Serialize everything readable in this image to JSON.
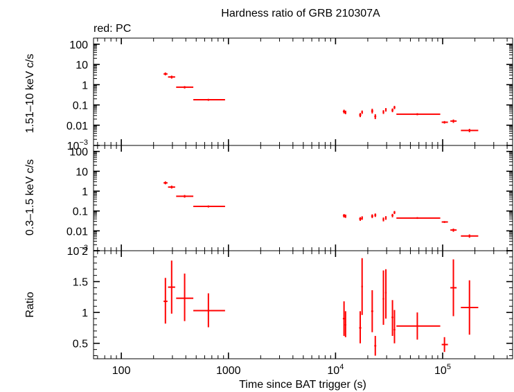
{
  "title": "Hardness ratio of GRB 210307A",
  "legend_note": "red: PC",
  "colors": {
    "data": "#ff0000",
    "axes": "#000000"
  },
  "chart_data": {
    "type": "scatter",
    "title": "Hardness ratio of GRB 210307A",
    "x_scale": "log",
    "xlim": [
      55,
      450000
    ],
    "xlabel": "Time since BAT trigger (s)",
    "x_ticks": [
      {
        "value": 100,
        "label": "100",
        "sup": ""
      },
      {
        "value": 1000,
        "label": "1000",
        "sup": ""
      },
      {
        "value": 10000,
        "label": "10",
        "sup": "4"
      },
      {
        "value": 100000,
        "label": "10",
        "sup": "5"
      }
    ],
    "panels": [
      {
        "id": "hard",
        "ylabel": "1.51–10 keV c/s",
        "y_scale": "log",
        "ylim": [
          0.001,
          200
        ],
        "y_ticks": [
          {
            "value": 100,
            "label": "100",
            "sup": ""
          },
          {
            "value": 10,
            "label": "10",
            "sup": ""
          },
          {
            "value": 1,
            "label": "1",
            "sup": ""
          },
          {
            "value": 0.1,
            "label": "0.1",
            "sup": ""
          },
          {
            "value": 0.01,
            "label": "0.01",
            "sup": ""
          },
          {
            "value": 0.001,
            "label": "10",
            "sup": "−3"
          }
        ],
        "points": [
          {
            "x": 258,
            "xlo": 248,
            "xhi": 270,
            "y": 3.4,
            "ylo": 2.9,
            "yhi": 4.0
          },
          {
            "x": 295,
            "xlo": 273,
            "xhi": 318,
            "y": 2.4,
            "ylo": 2.0,
            "yhi": 2.8
          },
          {
            "x": 390,
            "xlo": 325,
            "xhi": 470,
            "y": 0.75,
            "ylo": 0.65,
            "yhi": 0.85
          },
          {
            "x": 650,
            "xlo": 470,
            "xhi": 930,
            "y": 0.18,
            "ylo": 0.16,
            "yhi": 0.2
          },
          {
            "x": 12000,
            "xlo": 11700,
            "xhi": 12300,
            "y": 0.048,
            "ylo": 0.038,
            "yhi": 0.058
          },
          {
            "x": 12400,
            "xlo": 12200,
            "xhi": 12600,
            "y": 0.043,
            "ylo": 0.035,
            "yhi": 0.052
          },
          {
            "x": 17000,
            "xlo": 16600,
            "xhi": 17400,
            "y": 0.032,
            "ylo": 0.025,
            "yhi": 0.04
          },
          {
            "x": 17700,
            "xlo": 17400,
            "xhi": 18000,
            "y": 0.044,
            "ylo": 0.036,
            "yhi": 0.053
          },
          {
            "x": 22000,
            "xlo": 21500,
            "xhi": 22500,
            "y": 0.05,
            "ylo": 0.038,
            "yhi": 0.065
          },
          {
            "x": 23500,
            "xlo": 23000,
            "xhi": 24000,
            "y": 0.027,
            "ylo": 0.02,
            "yhi": 0.035
          },
          {
            "x": 28000,
            "xlo": 27500,
            "xhi": 28500,
            "y": 0.045,
            "ylo": 0.036,
            "yhi": 0.055
          },
          {
            "x": 29500,
            "xlo": 29000,
            "xhi": 30000,
            "y": 0.058,
            "ylo": 0.047,
            "yhi": 0.07
          },
          {
            "x": 34000,
            "xlo": 33300,
            "xhi": 34700,
            "y": 0.055,
            "ylo": 0.044,
            "yhi": 0.067
          },
          {
            "x": 35500,
            "xlo": 34800,
            "xhi": 36200,
            "y": 0.075,
            "ylo": 0.062,
            "yhi": 0.09
          },
          {
            "x": 58000,
            "xlo": 37000,
            "xhi": 95000,
            "y": 0.035,
            "ylo": 0.031,
            "yhi": 0.039
          },
          {
            "x": 104000,
            "xlo": 98000,
            "xhi": 112000,
            "y": 0.014,
            "ylo": 0.012,
            "yhi": 0.016
          },
          {
            "x": 126000,
            "xlo": 118000,
            "xhi": 135000,
            "y": 0.016,
            "ylo": 0.013,
            "yhi": 0.019
          },
          {
            "x": 178000,
            "xlo": 148000,
            "xhi": 215000,
            "y": 0.0055,
            "ylo": 0.0045,
            "yhi": 0.0066
          }
        ]
      },
      {
        "id": "soft",
        "ylabel": "0.3–1.5 keV c/s",
        "y_scale": "log",
        "ylim": [
          0.001,
          200
        ],
        "y_ticks": [
          {
            "value": 100,
            "label": "100",
            "sup": ""
          },
          {
            "value": 10,
            "label": "10",
            "sup": ""
          },
          {
            "value": 1,
            "label": "1",
            "sup": ""
          },
          {
            "value": 0.1,
            "label": "0.1",
            "sup": ""
          },
          {
            "value": 0.01,
            "label": "0.01",
            "sup": ""
          },
          {
            "value": 0.001,
            "label": "10",
            "sup": "−3"
          }
        ],
        "points": [
          {
            "x": 258,
            "xlo": 248,
            "xhi": 270,
            "y": 2.6,
            "ylo": 2.2,
            "yhi": 3.1
          },
          {
            "x": 295,
            "xlo": 273,
            "xhi": 318,
            "y": 1.6,
            "ylo": 1.35,
            "yhi": 1.9
          },
          {
            "x": 390,
            "xlo": 325,
            "xhi": 470,
            "y": 0.55,
            "ylo": 0.47,
            "yhi": 0.64
          },
          {
            "x": 650,
            "xlo": 470,
            "xhi": 930,
            "y": 0.17,
            "ylo": 0.15,
            "yhi": 0.19
          },
          {
            "x": 12000,
            "xlo": 11700,
            "xhi": 12300,
            "y": 0.058,
            "ylo": 0.047,
            "yhi": 0.07
          },
          {
            "x": 12400,
            "xlo": 12200,
            "xhi": 12600,
            "y": 0.055,
            "ylo": 0.045,
            "yhi": 0.066
          },
          {
            "x": 17000,
            "xlo": 16600,
            "xhi": 17400,
            "y": 0.04,
            "ylo": 0.032,
            "yhi": 0.049
          },
          {
            "x": 17700,
            "xlo": 17400,
            "xhi": 18000,
            "y": 0.045,
            "ylo": 0.036,
            "yhi": 0.054
          },
          {
            "x": 22000,
            "xlo": 21500,
            "xhi": 22500,
            "y": 0.055,
            "ylo": 0.044,
            "yhi": 0.068
          },
          {
            "x": 23500,
            "xlo": 23000,
            "xhi": 24000,
            "y": 0.062,
            "ylo": 0.05,
            "yhi": 0.075
          },
          {
            "x": 28000,
            "xlo": 27500,
            "xhi": 28500,
            "y": 0.038,
            "ylo": 0.03,
            "yhi": 0.047
          },
          {
            "x": 29500,
            "xlo": 29000,
            "xhi": 30000,
            "y": 0.045,
            "ylo": 0.036,
            "yhi": 0.055
          },
          {
            "x": 34000,
            "xlo": 33300,
            "xhi": 34700,
            "y": 0.06,
            "ylo": 0.048,
            "yhi": 0.072
          },
          {
            "x": 35500,
            "xlo": 34800,
            "xhi": 36200,
            "y": 0.085,
            "ylo": 0.07,
            "yhi": 0.1
          },
          {
            "x": 58000,
            "xlo": 37000,
            "xhi": 95000,
            "y": 0.044,
            "ylo": 0.04,
            "yhi": 0.049
          },
          {
            "x": 104000,
            "xlo": 98000,
            "xhi": 112000,
            "y": 0.028,
            "ylo": 0.025,
            "yhi": 0.031
          },
          {
            "x": 126000,
            "xlo": 118000,
            "xhi": 135000,
            "y": 0.011,
            "ylo": 0.009,
            "yhi": 0.013
          },
          {
            "x": 178000,
            "xlo": 148000,
            "xhi": 215000,
            "y": 0.0055,
            "ylo": 0.0045,
            "yhi": 0.0066
          }
        ]
      },
      {
        "id": "ratio",
        "ylabel": "Ratio",
        "y_scale": "linear",
        "ylim": [
          0.25,
          2.0
        ],
        "y_ticks": [
          {
            "value": 0.5,
            "label": "0.5",
            "sup": ""
          },
          {
            "value": 1,
            "label": "1",
            "sup": ""
          },
          {
            "value": 1.5,
            "label": "1.5",
            "sup": ""
          },
          {
            "value": 2,
            "label": "2",
            "sup": ""
          }
        ],
        "points": [
          {
            "x": 258,
            "xlo": 248,
            "xhi": 270,
            "y": 1.18,
            "ylo": 0.82,
            "yhi": 1.56
          },
          {
            "x": 295,
            "xlo": 273,
            "xhi": 318,
            "y": 1.41,
            "ylo": 0.98,
            "yhi": 1.84
          },
          {
            "x": 390,
            "xlo": 325,
            "xhi": 470,
            "y": 1.23,
            "ylo": 0.86,
            "yhi": 1.63
          },
          {
            "x": 650,
            "xlo": 470,
            "xhi": 930,
            "y": 1.03,
            "ylo": 0.76,
            "yhi": 1.31
          },
          {
            "x": 12000,
            "xlo": 11700,
            "xhi": 12300,
            "y": 0.9,
            "ylo": 0.62,
            "yhi": 1.18
          },
          {
            "x": 12400,
            "xlo": 12200,
            "xhi": 12600,
            "y": 0.8,
            "ylo": 0.6,
            "yhi": 1.02
          },
          {
            "x": 17000,
            "xlo": 16600,
            "xhi": 17400,
            "y": 0.75,
            "ylo": 0.5,
            "yhi": 1.02
          },
          {
            "x": 17700,
            "xlo": 17400,
            "xhi": 18000,
            "y": 1.42,
            "ylo": 0.96,
            "yhi": 1.88
          },
          {
            "x": 22000,
            "xlo": 21500,
            "xhi": 22500,
            "y": 1.02,
            "ylo": 0.68,
            "yhi": 1.36
          },
          {
            "x": 23500,
            "xlo": 23000,
            "xhi": 24000,
            "y": 0.46,
            "ylo": 0.3,
            "yhi": 0.62
          },
          {
            "x": 28000,
            "xlo": 27500,
            "xhi": 28500,
            "y": 1.22,
            "ylo": 0.8,
            "yhi": 1.68
          },
          {
            "x": 29500,
            "xlo": 29000,
            "xhi": 30000,
            "y": 1.32,
            "ylo": 0.9,
            "yhi": 1.7
          },
          {
            "x": 34000,
            "xlo": 33300,
            "xhi": 34700,
            "y": 0.92,
            "ylo": 0.62,
            "yhi": 1.2
          },
          {
            "x": 35500,
            "xlo": 34800,
            "xhi": 36200,
            "y": 0.72,
            "ylo": 0.5,
            "yhi": 1.04
          },
          {
            "x": 58000,
            "xlo": 37000,
            "xhi": 95000,
            "y": 0.78,
            "ylo": 0.56,
            "yhi": 1.0
          },
          {
            "x": 104000,
            "xlo": 98000,
            "xhi": 112000,
            "y": 0.48,
            "ylo": 0.36,
            "yhi": 0.6
          },
          {
            "x": 126000,
            "xlo": 118000,
            "xhi": 135000,
            "y": 1.4,
            "ylo": 0.94,
            "yhi": 1.86
          },
          {
            "x": 178000,
            "xlo": 148000,
            "xhi": 215000,
            "y": 1.08,
            "ylo": 0.64,
            "yhi": 1.52
          }
        ]
      }
    ]
  }
}
